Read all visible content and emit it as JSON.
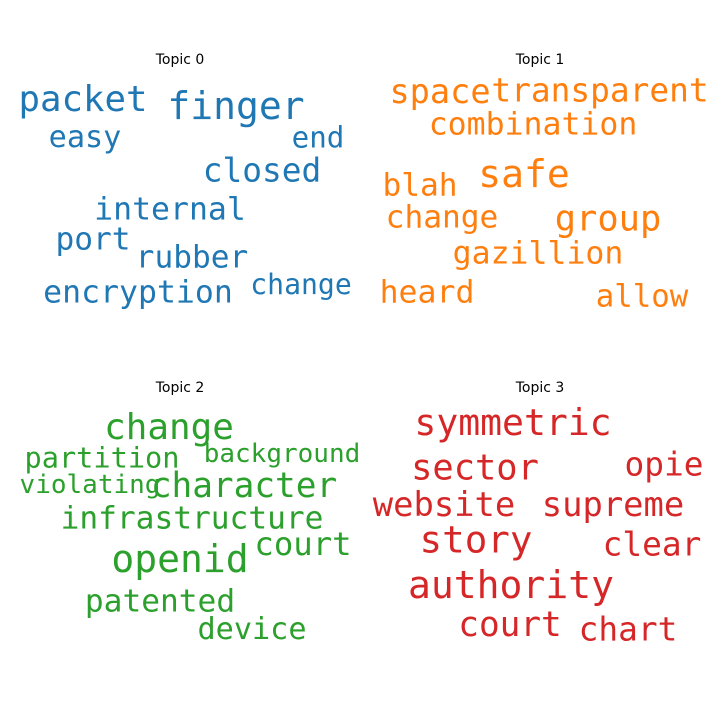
{
  "chart_data": [
    {
      "type": "wordcloud",
      "title": "Topic 0",
      "color": "#1f77b4",
      "words": [
        {
          "text": "finger",
          "weight": 1.0
        },
        {
          "text": "packet",
          "weight": 0.91
        },
        {
          "text": "closed",
          "weight": 0.8
        },
        {
          "text": "encryption",
          "weight": 0.75
        },
        {
          "text": "internal",
          "weight": 0.75
        },
        {
          "text": "port",
          "weight": 0.74
        },
        {
          "text": "rubber",
          "weight": 0.74
        },
        {
          "text": "easy",
          "weight": 0.7
        },
        {
          "text": "end",
          "weight": 0.66
        },
        {
          "text": "change",
          "weight": 0.62
        }
      ]
    },
    {
      "type": "wordcloud",
      "title": "Topic 1",
      "color": "#ff7f0e",
      "words": [
        {
          "text": "safe",
          "weight": 1.0
        },
        {
          "text": "group",
          "weight": 0.9
        },
        {
          "text": "space",
          "weight": 0.83
        },
        {
          "text": "transparent",
          "weight": 0.8
        },
        {
          "text": "combination",
          "weight": 0.75
        },
        {
          "text": "gazillion",
          "weight": 0.75
        },
        {
          "text": "heard",
          "weight": 0.75
        },
        {
          "text": "change",
          "weight": 0.74
        },
        {
          "text": "blah",
          "weight": 0.74
        },
        {
          "text": "allow",
          "weight": 0.72
        }
      ]
    },
    {
      "type": "wordcloud",
      "title": "Topic 2",
      "color": "#2ca02c",
      "words": [
        {
          "text": "openid",
          "weight": 1.0
        },
        {
          "text": "change",
          "weight": 0.92
        },
        {
          "text": "character",
          "weight": 0.86
        },
        {
          "text": "court",
          "weight": 0.78
        },
        {
          "text": "infrastructure",
          "weight": 0.74
        },
        {
          "text": "patented",
          "weight": 0.74
        },
        {
          "text": "device",
          "weight": 0.7
        },
        {
          "text": "partition",
          "weight": 0.64
        },
        {
          "text": "violating",
          "weight": 0.54
        },
        {
          "text": "background",
          "weight": 0.54
        }
      ]
    },
    {
      "type": "wordcloud",
      "title": "Topic 3",
      "color": "#d62728",
      "words": [
        {
          "text": "authority",
          "weight": 1.0
        },
        {
          "text": "story",
          "weight": 0.98
        },
        {
          "text": "symmetric",
          "weight": 0.94
        },
        {
          "text": "sector",
          "weight": 0.9
        },
        {
          "text": "court",
          "weight": 0.86
        },
        {
          "text": "website",
          "weight": 0.84
        },
        {
          "text": "supreme",
          "weight": 0.84
        },
        {
          "text": "opie",
          "weight": 0.8
        },
        {
          "text": "clear",
          "weight": 0.8
        },
        {
          "text": "chart",
          "weight": 0.8
        }
      ]
    }
  ]
}
